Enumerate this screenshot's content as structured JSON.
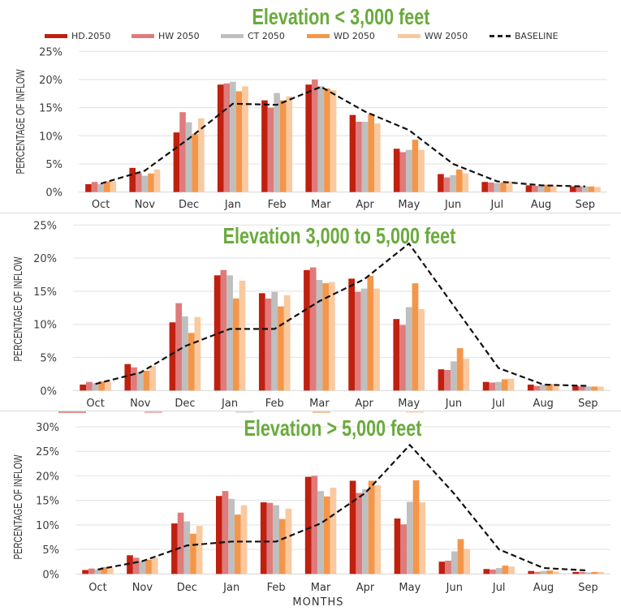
{
  "legend": {
    "items": [
      {
        "name": "HD.2050",
        "color": "#C0200F",
        "kind": "bar"
      },
      {
        "name": "HW 2050",
        "color": "#E07B7B",
        "kind": "bar"
      },
      {
        "name": "CT 2050",
        "color": "#BFBFBF",
        "kind": "bar"
      },
      {
        "name": "WD 2050",
        "color": "#F4964A",
        "kind": "bar"
      },
      {
        "name": "WW 2050",
        "color": "#F9C9A0",
        "kind": "bar"
      },
      {
        "name": "BASELINE",
        "color": "#222222",
        "kind": "dashed-line"
      }
    ]
  },
  "colors": {
    "title": "#6AAB3C",
    "grid": "#e6e6e6",
    "axis_text": "#404040",
    "baseline": "#111111"
  },
  "chart_data": [
    {
      "type": "bar",
      "title": "Elevation < 3,000 feet",
      "xlabel": "",
      "ylabel": "PERCENTAGE OF INFLOW",
      "ylim": [
        0,
        25
      ],
      "yticks": [
        "0%",
        "5%",
        "10%",
        "15%",
        "20%",
        "25%"
      ],
      "ytick_values": [
        0,
        5,
        10,
        15,
        20,
        25
      ],
      "grid": true,
      "legend": "top",
      "categories": [
        "Oct",
        "Nov",
        "Dec",
        "Jan",
        "Feb",
        "Mar",
        "Apr",
        "May",
        "Jun",
        "Jul",
        "Aug",
        "Sep"
      ],
      "series": [
        {
          "name": "HD.2050",
          "values": [
            1.4,
            4.3,
            10.6,
            19.1,
            16.3,
            19.1,
            13.7,
            7.7,
            3.2,
            1.8,
            1.2,
            1.0
          ]
        },
        {
          "name": "HW 2050",
          "values": [
            1.8,
            3.4,
            14.2,
            19.3,
            15.0,
            20.0,
            12.5,
            7.1,
            2.6,
            1.7,
            1.1,
            1.0
          ]
        },
        {
          "name": "CT 2050",
          "values": [
            1.4,
            2.9,
            12.4,
            19.6,
            17.6,
            18.8,
            12.5,
            7.5,
            3.0,
            1.6,
            1.1,
            1.0
          ]
        },
        {
          "name": "WD 2050",
          "values": [
            1.9,
            3.3,
            10.3,
            17.9,
            16.3,
            18.4,
            13.9,
            9.3,
            4.0,
            1.7,
            1.3,
            1.0
          ]
        },
        {
          "name": "WW 2050",
          "values": [
            1.9,
            4.0,
            13.1,
            18.8,
            17.0,
            18.1,
            12.2,
            7.5,
            3.3,
            1.9,
            1.0,
            0.9
          ]
        }
      ],
      "baseline": {
        "name": "BASELINE",
        "type": "line",
        "values": [
          1.5,
          3.8,
          9.5,
          15.7,
          15.5,
          18.7,
          14.3,
          11.0,
          5.0,
          1.9,
          1.2,
          1.0
        ]
      }
    },
    {
      "type": "bar",
      "title": "Elevation 3,000 to 5,000 feet",
      "xlabel": "",
      "ylabel": "PERCENTAGE OF INFLOW",
      "ylim": [
        0,
        25
      ],
      "yticks": [
        "0%",
        "5%",
        "10%",
        "15%",
        "20%",
        "25%"
      ],
      "ytick_values": [
        0,
        5,
        10,
        15,
        20,
        25
      ],
      "grid": true,
      "legend": "none",
      "categories": [
        "Oct",
        "Nov",
        "Dec",
        "Jan",
        "Feb",
        "Mar",
        "Apr",
        "May",
        "Jun",
        "Jul",
        "Aug",
        "Sep"
      ],
      "series": [
        {
          "name": "HD.2050",
          "values": [
            0.9,
            4.0,
            10.3,
            17.4,
            14.7,
            18.2,
            16.9,
            10.8,
            3.2,
            1.3,
            0.9,
            0.7
          ]
        },
        {
          "name": "HW 2050",
          "values": [
            1.3,
            3.5,
            13.2,
            18.2,
            13.9,
            18.6,
            14.9,
            9.9,
            3.1,
            1.2,
            0.7,
            0.6
          ]
        },
        {
          "name": "CT 2050",
          "values": [
            1.1,
            2.8,
            11.2,
            17.4,
            14.9,
            16.7,
            15.4,
            12.6,
            4.4,
            1.3,
            0.9,
            0.6
          ]
        },
        {
          "name": "WD 2050",
          "values": [
            1.4,
            3.0,
            8.7,
            13.9,
            12.7,
            16.2,
            17.3,
            16.2,
            6.4,
            1.7,
            1.0,
            0.6
          ]
        },
        {
          "name": "WW 2050",
          "values": [
            1.4,
            3.7,
            11.1,
            16.6,
            14.4,
            16.4,
            15.4,
            12.3,
            4.8,
            1.8,
            0.7,
            0.6
          ]
        }
      ],
      "baseline": {
        "name": "BASELINE",
        "type": "line",
        "values": [
          1.0,
          2.7,
          6.7,
          9.3,
          9.3,
          13.5,
          16.8,
          22.2,
          12.8,
          3.4,
          0.9,
          0.7
        ]
      }
    },
    {
      "type": "bar",
      "title": "Elevation > 5,000 feet",
      "xlabel": "MONTHS",
      "ylabel": "PERCENTAGE OF INFLOW",
      "ylim": [
        0,
        30
      ],
      "yticks": [
        "0%",
        "5%",
        "10%",
        "15%",
        "20%",
        "25%",
        "30%"
      ],
      "ytick_values": [
        0,
        5,
        10,
        15,
        20,
        25,
        30
      ],
      "grid": true,
      "legend": "none",
      "categories": [
        "Oct",
        "Nov",
        "Dec",
        "Jan",
        "Feb",
        "Mar",
        "Apr",
        "May",
        "Jun",
        "Jul",
        "Aug",
        "Sep"
      ],
      "series": [
        {
          "name": "HD.2050",
          "values": [
            0.8,
            3.8,
            10.3,
            15.9,
            14.6,
            19.8,
            19.0,
            11.3,
            2.5,
            1.0,
            0.6,
            0.4
          ]
        },
        {
          "name": "HW 2050",
          "values": [
            1.1,
            3.3,
            12.5,
            16.9,
            14.5,
            20.0,
            16.5,
            10.1,
            2.7,
            0.9,
            0.4,
            0.4
          ]
        },
        {
          "name": "CT 2050",
          "values": [
            0.9,
            2.6,
            10.7,
            15.3,
            14.0,
            16.9,
            17.3,
            14.7,
            4.6,
            1.2,
            0.6,
            0.3
          ]
        },
        {
          "name": "WD 2050",
          "values": [
            1.4,
            2.9,
            8.2,
            12.1,
            11.2,
            15.8,
            19.0,
            19.1,
            7.1,
            1.7,
            0.7,
            0.4
          ]
        },
        {
          "name": "WW 2050",
          "values": [
            1.2,
            3.3,
            9.8,
            14.0,
            13.3,
            17.6,
            18.1,
            14.6,
            5.1,
            1.5,
            0.5,
            0.4
          ]
        }
      ],
      "baseline": {
        "name": "BASELINE",
        "type": "line",
        "values": [
          0.9,
          2.6,
          5.8,
          6.6,
          6.6,
          10.3,
          16.5,
          26.3,
          16.3,
          5.0,
          1.2,
          0.7
        ]
      }
    }
  ]
}
